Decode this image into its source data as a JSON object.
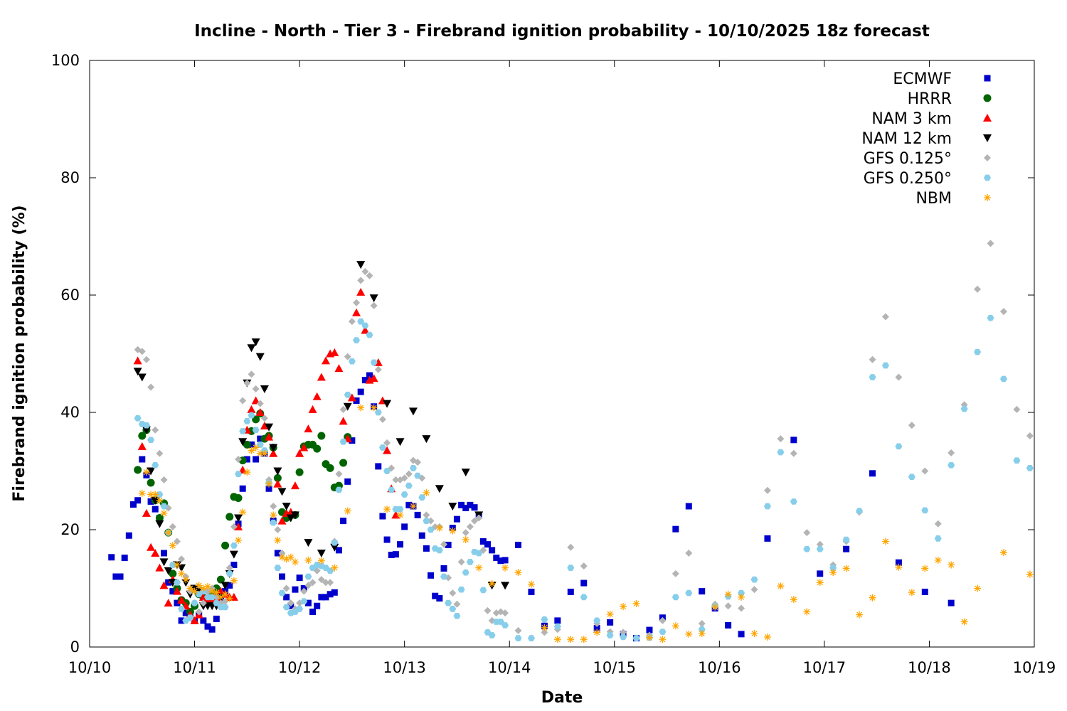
{
  "chart_data": {
    "type": "scatter",
    "title": "Incline - North - Tier 3 - Firebrand ignition probability - 10/10/2025 18z forecast",
    "xlabel": "Date",
    "ylabel": "Firebrand ignition probability (%)",
    "x_units": "hours since 10/10 00z",
    "xlim": [
      0,
      216
    ],
    "ylim": [
      0,
      100
    ],
    "yticks": [
      0,
      20,
      40,
      60,
      80,
      100
    ],
    "xticks": [
      {
        "hour": 0,
        "label": "10/10"
      },
      {
        "hour": 24,
        "label": "10/11"
      },
      {
        "hour": 48,
        "label": "10/12"
      },
      {
        "hour": 72,
        "label": "10/13"
      },
      {
        "hour": 96,
        "label": "10/14"
      },
      {
        "hour": 120,
        "label": "10/15"
      },
      {
        "hour": 144,
        "label": "10/16"
      },
      {
        "hour": 168,
        "label": "10/17"
      },
      {
        "hour": 192,
        "label": "10/18"
      },
      {
        "hour": 216,
        "label": "10/19"
      }
    ],
    "grid": false,
    "legend_position": "top-right",
    "series": [
      {
        "name": "ECMWF",
        "marker": "square",
        "color": "#0000cc",
        "segments": [
          {
            "start": 5,
            "step": 1,
            "values": [
              15.3,
              12,
              12,
              15.2,
              19,
              24.3,
              25,
              32,
              29.3,
              24.8,
              23.5,
              22,
              16,
              11,
              9.5,
              7.5,
              4.5,
              5.8,
              5,
              4.5,
              5.5,
              4.5,
              3.5,
              3,
              4.8,
              8,
              9.5,
              10.5,
              14,
              21,
              27,
              32,
              34.5,
              32,
              35.5,
              33,
              27,
              21.5,
              16,
              12,
              8.5,
              7,
              9.8,
              11.8,
              10,
              7.5,
              6,
              7,
              8.5,
              8.5,
              9,
              9.3,
              16.5,
              21.5,
              28.2,
              35.2,
              42,
              43.5,
              45.5,
              46.3,
              41,
              30.8,
              22.3,
              18.3,
              15.7,
              15.8,
              17.5,
              20.5,
              24.2,
              24,
              22.5,
              19,
              16.8,
              12.2,
              8.7,
              8.3,
              13.4,
              17.4,
              20.3,
              21.8,
              24.2,
              23.7,
              24.2,
              23.8,
              22.5,
              18,
              17.5,
              16.5,
              15.2,
              14.7,
              14.8
            ]
          },
          {
            "start": 98,
            "step": 3,
            "values": [
              17.4,
              9.4,
              3.6,
              4.5,
              9.4,
              10.9,
              3.2,
              4.2,
              2.2,
              1.5,
              2.9,
              5,
              20.1,
              24,
              9.5,
              6.6,
              3.7,
              2.2
            ]
          },
          {
            "start": 155,
            "step": 6,
            "values": [
              18.5,
              35.3,
              12.5,
              16.7,
              29.6,
              14.4,
              9.4,
              7.5
            ]
          }
        ]
      },
      {
        "name": "HRRR",
        "marker": "circle",
        "color": "#006400",
        "segments": [
          {
            "start": 11,
            "step": 1,
            "values": [
              30.2,
              36,
              37,
              28,
              25,
              22,
              24.5,
              19.5,
              12.5,
              10,
              8,
              7.5,
              6,
              7,
              9,
              8.5,
              8,
              9,
              10,
              11.5,
              17.3,
              22.2,
              25.6,
              25.4,
              31.8,
              34.5,
              36.8,
              38.8,
              39.8,
              35.5,
              36,
              34,
              28.8,
              23,
              22,
              22.5,
              22.5,
              29.8,
              34.2,
              34.5,
              34.5,
              33.8,
              36,
              31.2,
              30.5,
              27.2,
              27.5,
              31.4,
              35.8
            ]
          }
        ]
      },
      {
        "name": "NAM 3 km",
        "marker": "triangle-up",
        "color": "#ff0000",
        "segments": [
          {
            "start": 11,
            "step": 1,
            "values": [
              48.8,
              34.2,
              22.8,
              17,
              16,
              13.5,
              10.5,
              7.5,
              11.5,
              9.5,
              8,
              7,
              5.5,
              4.5,
              5.5,
              8.5,
              8,
              8,
              8.5,
              9.5,
              9,
              8.5,
              8.5,
              20.5,
              30.2,
              37,
              40.5,
              42,
              40,
              37.7,
              35.8,
              33,
              27.8,
              21.5,
              22.8,
              23,
              27.5,
              33,
              34,
              37.2,
              40.5,
              42.7,
              46,
              48.8,
              50,
              50.2,
              47.5,
              38.5,
              35.5,
              42.5,
              57,
              60.5,
              54,
              45.5,
              45.8,
              48.5,
              42,
              33.5,
              27,
              22.5
            ]
          }
        ]
      },
      {
        "name": "NAM 12 km",
        "marker": "triangle-down",
        "color": "#000000",
        "segments": [
          {
            "start": 11,
            "step": 1,
            "values": [
              47,
              46,
              37,
              30,
              25,
              21,
              14.5,
              13,
              11,
              14,
              13.5,
              11,
              9,
              10,
              9.5,
              7,
              7,
              7,
              7,
              8.5,
              10.5,
              12.5,
              15.8,
              22,
              35,
              45,
              51,
              52,
              49.5,
              44,
              37.5,
              34,
              30,
              26.5,
              24,
              22,
              22.5
            ]
          },
          {
            "start": 50,
            "step": 3,
            "values": [
              17.8,
              16,
              17,
              41,
              65.2,
              59.5,
              41.5,
              35,
              40.2,
              35.5,
              27,
              24,
              29.8,
              22.5,
              10.5,
              10.5
            ]
          }
        ]
      },
      {
        "name": "GFS 0.125°",
        "marker": "diamond",
        "color": "#b4b4b4",
        "segments": [
          {
            "start": 11,
            "step": 1,
            "values": [
              50.7,
              50.4,
              49,
              44.3,
              37,
              33,
              28.5,
              23.7,
              20.5,
              18,
              15,
              12,
              9.5,
              7.5,
              6,
              7.5,
              9.5,
              10,
              8.5,
              7.5,
              7.8,
              13.5,
              20.5,
              32,
              42,
              45,
              46.5,
              44,
              41.5,
              39,
              28.5,
              24,
              20,
              16,
              10,
              7.5,
              6.5,
              7.5,
              9.5,
              10.5,
              11,
              13,
              11.5,
              11,
              11,
              18,
              29.5,
              40.5,
              49.5,
              55.5,
              58.7,
              62.5,
              64,
              63.3,
              58.2,
              47.3,
              38.8,
              34.8,
              30.5,
              28.5,
              28.5,
              28.8,
              29.5,
              31.8,
              31.5,
              28.8,
              22.5,
              21.5,
              20.5,
              20.5,
              17.5,
              11.8,
              9.2,
              7.3,
              14.5,
              19.5,
              20.5,
              21.5,
              22,
              16.5,
              6.2,
              4.5,
              5.8,
              6,
              5.8
            ]
          },
          {
            "start": 98,
            "step": 3,
            "values": [
              2.8,
              1.5,
              2.5,
              3,
              17,
              13.8,
              4,
              2.6,
              2.5,
              1.5,
              2,
              4.5,
              12.5,
              16,
              4,
              7.3,
              7,
              6.6,
              9.8,
              26.7,
              35.5,
              33,
              19.5,
              17.5,
              14,
              18,
              23,
              49,
              56.3,
              46,
              37.8,
              30,
              21,
              33.1,
              41.3,
              61,
              68.8,
              57.2,
              40.5,
              36
            ]
          }
        ]
      },
      {
        "name": "GFS 0.250°",
        "marker": "hexagon",
        "color": "#87ceeb",
        "segments": [
          {
            "start": 11,
            "step": 1,
            "values": [
              39,
              38,
              37.8,
              35.3,
              31,
              26,
              24,
              19.5,
              14,
              11,
              6.5,
              4.5,
              5,
              7.5,
              9,
              9.5,
              8.5,
              8.5,
              7.5,
              6.8,
              6.8,
              12.5,
              17.3,
              29.5,
              36.8,
              38.5,
              39.5,
              37,
              34.5,
              33.5,
              28,
              21.2,
              13.5,
              9.2,
              6.8,
              5.8,
              6,
              6.5,
              7.8,
              12,
              13.5,
              14,
              13.8,
              13.5,
              13,
              17.8,
              26.8,
              35,
              43,
              48.7,
              52.3,
              55.5,
              54.8,
              53.2,
              48.5,
              40,
              34,
              30,
              26.8,
              23.5,
              23.5,
              26,
              27.5,
              30.5,
              29.2,
              25.5,
              21.5,
              20,
              16.8,
              16.5,
              12,
              7.5,
              6.5,
              5.3,
              9.8,
              12.7,
              14.5,
              16.2,
              16,
              9.7,
              2.5,
              2,
              4.3,
              4.3,
              3.7
            ]
          },
          {
            "start": 98,
            "step": 3,
            "values": [
              1.5,
              1.5,
              4.7,
              3.5,
              13.5,
              8.5,
              4.5,
              2,
              1.7,
              1.5,
              1.6,
              2.6,
              8.5,
              9.2,
              3,
              7,
              8.6,
              9.2,
              11.5,
              24,
              33.2,
              24.8,
              16.7,
              16.7,
              13.5,
              18.3,
              23.2,
              46,
              48,
              34.2,
              29,
              23.3,
              18.5,
              31,
              40.6,
              50.3,
              56.1,
              45.7,
              31.8,
              30.5
            ]
          }
        ]
      },
      {
        "name": "NBM",
        "marker": "asterisk",
        "color": "#ffa500",
        "segments": [
          {
            "start": 12,
            "step": 1,
            "values": [
              26.2,
              29.8,
              26,
              26,
              25,
              22.8,
              19.5,
              17.3,
              14,
              12.5,
              11.5,
              10,
              9.5,
              10.5,
              10,
              10.3,
              9.5,
              9.3,
              8.5,
              9,
              8.3,
              11.3,
              18.2,
              23,
              29.8,
              33.5,
              34,
              33,
              33,
              27.8,
              22.5,
              18.2,
              15.3,
              15,
              15.3,
              14.5
            ]
          },
          {
            "start": 50,
            "step": 3,
            "values": [
              14.8,
              14.7,
              13.5,
              23.2,
              40.8,
              40.8,
              23.5,
              22.5,
              24,
              26.3,
              20.3,
              19.8,
              18.3,
              13.5,
              10.8,
              13.5,
              12.7,
              10.7,
              3.3,
              1.3,
              1.3,
              1.3,
              2.5,
              5.6,
              6.9,
              7.4,
              1.6,
              1.3,
              3.6,
              2.2,
              2.3,
              6.8,
              9,
              8.5,
              2.3,
              1.7,
              10.4,
              8.1,
              6,
              11,
              12.7,
              13.4,
              5.5,
              8.4,
              18,
              13.6,
              9.3,
              13.4,
              14.8,
              14,
              4.3,
              10,
              null,
              16.1,
              null,
              12.4
            ]
          }
        ]
      }
    ]
  }
}
